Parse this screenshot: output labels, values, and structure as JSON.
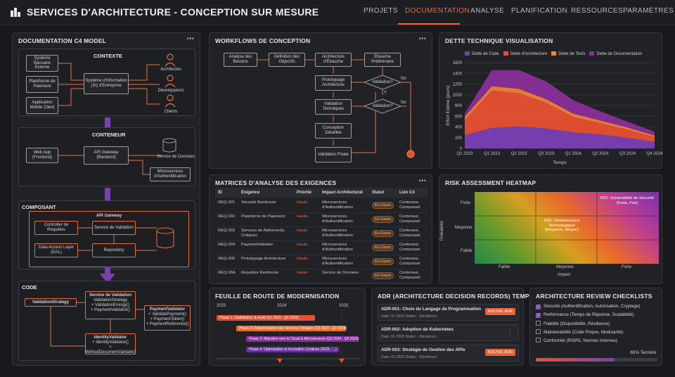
{
  "app": {
    "title": "SERVICES D'ARCHITECTURE - CONCEPTION SUR MESURE"
  },
  "nav": [
    "PROJETS",
    "DOCUMENTATION",
    "ANALYSE",
    "PLANIFICATION",
    "RESSOURCES",
    "PARAMÈTRES"
  ],
  "nav_active": "DOCUMENTATION",
  "c4": {
    "title": "DOCUMENTATION C4 MODEL",
    "contexte": {
      "title": "CONTEXTE",
      "systems": [
        "Système Bancaire Externe",
        "Plateforme de Paiement",
        "Application Mobile Client"
      ],
      "center": "Système d'Information (SI) d'Entreprise",
      "actors": [
        "Architectes",
        "Développeurs",
        "Clients"
      ]
    },
    "conteneur": {
      "title": "CONTENEUR",
      "web": "Web App (Frontend)",
      "gateway": "API Gateway (Backend)",
      "db": "Service de Données",
      "micro": "Microservices d'Authentification"
    },
    "composant": {
      "title": "COMPOSANT",
      "group": "API Gateway",
      "controller": "Controller de Requêtes",
      "validation": "Service de Validation",
      "dal": "Data Access Layer (DAL)",
      "repository": "Repository"
    },
    "code": {
      "title": "CODE",
      "strategy": "ValidationStrategy",
      "service_title": "Service de Validation",
      "service_items": [
        "ValidationStrategy",
        "+ ValidationEnergy()",
        "+ PaymentValidator()"
      ],
      "payment_title": "PaymentValidator",
      "payment_items": [
        "+ ValidatePayment()",
        "+ PaymentToken()",
        "+ PaymentReference()"
      ],
      "identity_title": "IdentityValidator",
      "identity_items": [
        "+ IdentityValidator()",
        "+ MethodDocumentValidate()"
      ]
    }
  },
  "workflow": {
    "title": "WORKFLOWS DE CONCEPTION",
    "steps": [
      "Analyse des Besoins",
      "Définition des Objectifs",
      "Architecture d'Ébauche",
      "Ébauche Préliminaire",
      "Prototypage Architecture",
      "Validation Techniques",
      "Conception Détaillée",
      "Validation Finale"
    ],
    "decisions": [
      "Validation?",
      "Validation?"
    ],
    "yes": "Y",
    "no": "No"
  },
  "dette": {
    "title": "DETTE TECHNIQUE VISUALISATION"
  },
  "chart_data": {
    "type": "area",
    "x": [
      "Q1 2023",
      "Q1 2023",
      "Q2 2023",
      "Q3 2023",
      "Q1 2024",
      "Q2 2024",
      "Q3 2024",
      "Q4 2024"
    ],
    "series": [
      {
        "name": "Dette de Code",
        "color": "#7b3fb4",
        "values": [
          250,
          380,
          410,
          370,
          300,
          260,
          200,
          120
        ]
      },
      {
        "name": "Dette d'Architecture",
        "color": "#e8502f",
        "values": [
          280,
          700,
          620,
          480,
          290,
          210,
          150,
          90
        ]
      },
      {
        "name": "Dette de Tests",
        "color": "#f0803a",
        "values": [
          60,
          80,
          80,
          70,
          60,
          50,
          40,
          30
        ]
      },
      {
        "name": "Dette de Documentation",
        "color": "#8a2f9a",
        "values": [
          60,
          300,
          350,
          330,
          250,
          170,
          110,
          70
        ]
      }
    ],
    "ylabel": "Effort Estimé (jours)",
    "xlabel": "Temps",
    "yticks": [
      0,
      200,
      400,
      600,
      800,
      1000,
      1200,
      1400,
      1600
    ],
    "ylim": [
      0,
      1600
    ]
  },
  "matrices": {
    "title": "MATRICES D'ANALYSE DES EXIGENCES",
    "headers": [
      "ID",
      "Exigence",
      "Priorité",
      "Impact Architectural",
      "Statut",
      "Lien C4"
    ],
    "rows": [
      [
        "REQ-001",
        "Sécurité Renforcée",
        "Haute",
        "Microservices d'Authentification",
        "En Cours",
        "Conteneur, Composant"
      ],
      [
        "REQ-002",
        "Plateforme de Paiement",
        "Haute",
        "Microservices d'Authentification",
        "En Cours",
        "Conteneur, Composant"
      ],
      [
        "REQ-003",
        "Services de Admenscits Critiques",
        "Haute",
        "Microservices d'Authentification",
        "En Cours",
        "Conteneur, Composant"
      ],
      [
        "REQ-004",
        "PaymentValidator",
        "Haute",
        "Microservices d'Authentification",
        "En Cours",
        "Conteneur, Composant"
      ],
      [
        "REQ-005",
        "Prototypage Architecture",
        "Haute",
        "Microservices d'Authentification",
        "En Cours",
        "Conteneur, Composant"
      ],
      [
        "REQ-00A",
        "Requêtes Renforcée",
        "Haute",
        "Service de Données",
        "En Cours",
        "Conteneur, Composant"
      ]
    ]
  },
  "risk": {
    "title": "RISK ASSESSMENT HEATMAP",
    "ylabel": "Probabilité",
    "xlabel": "Impact",
    "rows": [
      "Forte",
      "Moyenne",
      "Faible"
    ],
    "cols": [
      "Faible",
      "Moyenne",
      "Forte"
    ],
    "r02": "R02: Vulnérabilité de Sécurité (Forte, Fort)",
    "r05": "R05: Obsolescence Technologique (Moyenne, Moyen)"
  },
  "roadmap": {
    "title": "FEUILLE DE ROUTE DE MODERNISATION",
    "years": [
      "2023",
      "2024",
      "2025"
    ],
    "phases": [
      "Phase 1: Stabilisation & Audit (Q1 2023 - Q4 2023)",
      "Phase 2: Refactorisation des Services Critiques (Q3 2023 - Q2 2024)",
      "Phase 3: Migration vers le Cloud & Microservices (Q3 2024 - Q4 2025)",
      "Phase 4: Optimisation et Innovation Continue (2025 - ...)"
    ]
  },
  "adr": {
    "title": "ADR (ARCHITECTURE DECISION RECORDS) TEMPLATES",
    "items": [
      {
        "title": "ADR-001: Choix du Langage de Programmation",
        "status": "Date: 01 2023     Statut: -          Décideurs:",
        "button": "NOUVEL ADR"
      },
      {
        "title": "ADR-002: Adoption de Kubernetes",
        "status": "Date: 01 2023     Statut: -          Décideurs:",
        "button": ""
      },
      {
        "title": "ADR-003: Stratégie de Gestion des APIs",
        "status": "Date: 01 2023     Statut: -          Décideurs:",
        "button": "NOUVEL ADR"
      }
    ]
  },
  "review": {
    "title": "ARCHITECTURE REVIEW CHECKLISTS",
    "items": [
      {
        "label": "Sécurité (Authentification, Autorisation, Cryptage)",
        "checked": true
      },
      {
        "label": "Performance (Temps de Réponse, Scalabilité)",
        "checked": true
      },
      {
        "label": "Fiabilité (Disponibilité, Résilience)",
        "checked": false
      },
      {
        "label": "Maintenabilité (Code Propre, Modularité)",
        "checked": false
      },
      {
        "label": "Conformité (RGPD, Normes Internes)",
        "checked": false
      }
    ],
    "progress": 0.65,
    "progress_label": "65% Terminé"
  }
}
